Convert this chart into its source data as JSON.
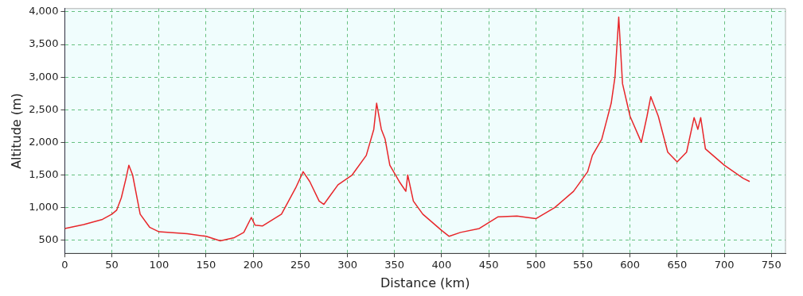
{
  "chart_data": {
    "type": "line",
    "xlabel": "Distance (km)",
    "ylabel": "Altitude (m)",
    "xlim": [
      0,
      765
    ],
    "xticks": [
      0,
      50,
      100,
      150,
      200,
      250,
      300,
      350,
      400,
      450,
      500,
      550,
      600,
      650,
      700,
      750
    ],
    "ylim": [
      300,
      4050
    ],
    "yticks": [
      {
        "value": 500,
        "label": "500"
      },
      {
        "value": 1000,
        "label": "1,000"
      },
      {
        "value": 1500,
        "label": "1,500"
      },
      {
        "value": 2000,
        "label": "2,000"
      },
      {
        "value": 2500,
        "label": "2,500"
      },
      {
        "value": 3000,
        "label": "3,000"
      },
      {
        "value": 3500,
        "label": "3,500"
      },
      {
        "value": 4000,
        "label": "4,000"
      }
    ],
    "grid": true,
    "marker": "none",
    "line_style": "solid",
    "series": [
      {
        "color": "#e8262a",
        "x": [
          0,
          20,
          40,
          50,
          55,
          60,
          65,
          68,
          72,
          80,
          90,
          100,
          130,
          150,
          165,
          180,
          190,
          198,
          202,
          210,
          230,
          245,
          253,
          260,
          270,
          275,
          280,
          290,
          305,
          320,
          328,
          331,
          336,
          340,
          345,
          355,
          362,
          364,
          370,
          380,
          400,
          408,
          420,
          440,
          460,
          480,
          500,
          520,
          540,
          555,
          560,
          570,
          580,
          584,
          588,
          592,
          600,
          612,
          618,
          622,
          630,
          640,
          650,
          660,
          668,
          672,
          675,
          680,
          700,
          720,
          727
        ],
        "values": [
          680,
          740,
          820,
          900,
          960,
          1150,
          1450,
          1650,
          1500,
          900,
          700,
          630,
          600,
          560,
          490,
          540,
          620,
          850,
          730,
          720,
          900,
          1300,
          1550,
          1400,
          1100,
          1050,
          1150,
          1350,
          1500,
          1800,
          2200,
          2600,
          2200,
          2050,
          1650,
          1400,
          1250,
          1500,
          1100,
          900,
          650,
          560,
          620,
          680,
          860,
          870,
          830,
          1000,
          1250,
          1550,
          1800,
          2050,
          2600,
          3000,
          3920,
          2900,
          2400,
          2000,
          2400,
          2700,
          2400,
          1850,
          1700,
          1850,
          2380,
          2200,
          2380,
          1900,
          1650,
          1450,
          1400
        ]
      }
    ]
  }
}
